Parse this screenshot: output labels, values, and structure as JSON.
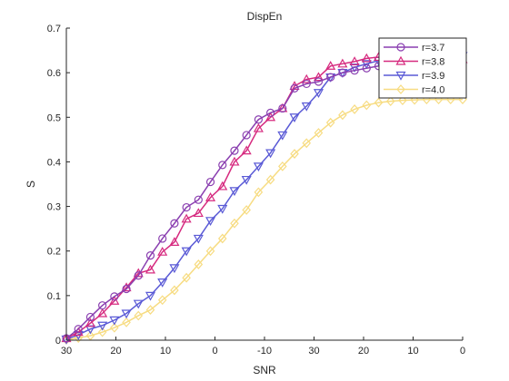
{
  "chart_data": {
    "type": "line",
    "title": "DispEn",
    "xlabel": "SNR",
    "ylabel": "S",
    "x_tick_labels": [
      "30",
      "20",
      "10",
      "0",
      "-10",
      "30",
      "20",
      "10",
      "0"
    ],
    "ylim": [
      0,
      0.7
    ],
    "y_ticks": [
      0,
      0.1,
      0.2,
      0.3,
      0.4,
      0.5,
      0.6,
      0.7
    ],
    "y_tick_labels": [
      "0",
      "0.1",
      "0.2",
      "0.3",
      "0.4",
      "0.5",
      "0.6",
      "0.7"
    ],
    "grid": false,
    "legend_position": "top-right",
    "series": [
      {
        "name": "r=3.7",
        "color": "#8a3fb0",
        "marker": "circle",
        "values": [
          0.004,
          0.025,
          0.052,
          0.078,
          0.098,
          0.115,
          0.145,
          0.19,
          0.228,
          0.262,
          0.298,
          0.315,
          0.355,
          0.393,
          0.425,
          0.46,
          0.495,
          0.51,
          0.52,
          0.565,
          0.575,
          0.58,
          0.59,
          0.6,
          0.605,
          0.61,
          0.615,
          0.617,
          0.617,
          0.618,
          0.618,
          0.618,
          0.62,
          0.62
        ]
      },
      {
        "name": "r=3.8",
        "color": "#d62a7f",
        "marker": "triangle-up",
        "values": [
          0.004,
          0.018,
          0.038,
          0.06,
          0.088,
          0.118,
          0.15,
          0.158,
          0.198,
          0.22,
          0.272,
          0.285,
          0.32,
          0.345,
          0.4,
          0.425,
          0.475,
          0.5,
          0.52,
          0.57,
          0.585,
          0.59,
          0.615,
          0.62,
          0.625,
          0.632,
          0.635,
          0.638,
          0.638,
          0.638,
          0.636,
          0.634,
          0.632,
          0.63
        ]
      },
      {
        "name": "r=3.9",
        "color": "#5a5ad6",
        "marker": "triangle-down",
        "values": [
          0.002,
          0.012,
          0.025,
          0.033,
          0.045,
          0.06,
          0.082,
          0.1,
          0.13,
          0.162,
          0.2,
          0.228,
          0.268,
          0.295,
          0.335,
          0.36,
          0.39,
          0.42,
          0.46,
          0.5,
          0.525,
          0.555,
          0.59,
          0.6,
          0.612,
          0.62,
          0.627,
          0.632,
          0.635,
          0.637,
          0.638,
          0.638,
          0.638,
          0.638
        ]
      },
      {
        "name": "r=4.0",
        "color": "#f7dc82",
        "marker": "diamond",
        "values": [
          0.001,
          0.005,
          0.01,
          0.018,
          0.028,
          0.04,
          0.055,
          0.068,
          0.09,
          0.112,
          0.14,
          0.17,
          0.2,
          0.228,
          0.262,
          0.292,
          0.332,
          0.36,
          0.39,
          0.418,
          0.442,
          0.465,
          0.488,
          0.505,
          0.518,
          0.527,
          0.533,
          0.536,
          0.538,
          0.539,
          0.54,
          0.54,
          0.54,
          0.54
        ]
      }
    ]
  }
}
